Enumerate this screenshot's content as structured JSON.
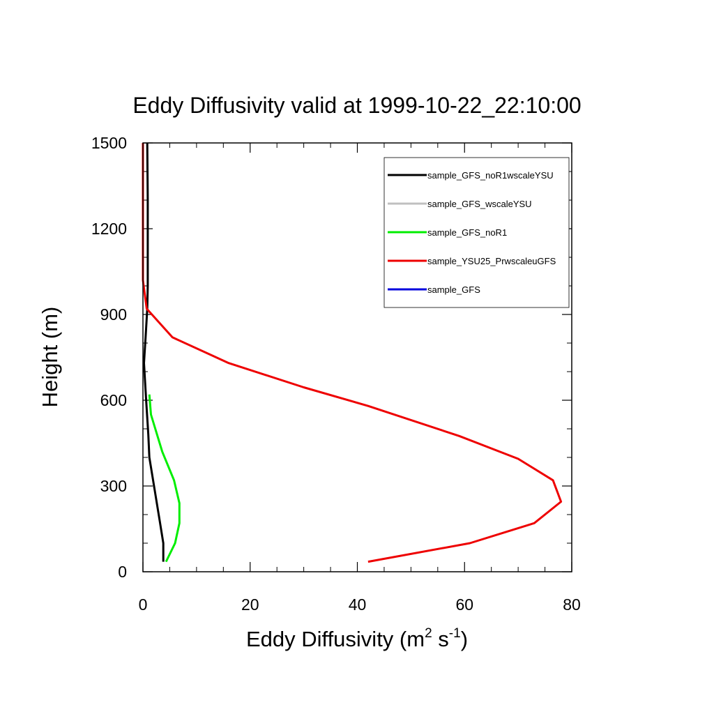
{
  "chart_data": {
    "type": "line",
    "title": "Eddy Diffusivity valid at 1999-10-22_22:10:00",
    "xlabel": {
      "prefix": "Eddy Diffusivity (m",
      "sup1": "2",
      "mid": " s",
      "sup2": "-1",
      "suffix": ")"
    },
    "ylabel": "Height (m)",
    "xlim": [
      0,
      80
    ],
    "ylim": [
      0,
      1500
    ],
    "x_ticks": [
      0,
      20,
      40,
      60,
      80
    ],
    "x_tick_labels": [
      "0",
      "20",
      "40",
      "60",
      "80"
    ],
    "y_ticks": [
      0,
      300,
      600,
      900,
      1200,
      1500
    ],
    "y_tick_labels": [
      "0",
      "300",
      "600",
      "900",
      "1200",
      "1500"
    ],
    "x_minor_step": 5,
    "y_minor_step": 100,
    "grid": false,
    "legend_position": "top-right",
    "series": [
      {
        "name": "sample_GFS_noR1wscaleYSU",
        "color": "#000000",
        "x": [
          3.8,
          3.8,
          3.2,
          1.2,
          1.0,
          0.6,
          0.2,
          0.5,
          0.8,
          0.9,
          0.9,
          0.9,
          0.9,
          0.8
        ],
        "y": [
          35,
          100,
          170,
          400,
          480,
          600,
          730,
          820,
          920,
          1000,
          1100,
          1200,
          1300,
          1500
        ]
      },
      {
        "name": "sample_GFS_wscaleYSU",
        "color": "#c0c0c0",
        "x": [],
        "y": []
      },
      {
        "name": "sample_GFS_noR1",
        "color": "#00ee00",
        "x": [
          4.3,
          6.0,
          6.8,
          6.8,
          5.8,
          3.6,
          1.5,
          1.2
        ],
        "y": [
          35,
          100,
          170,
          240,
          320,
          420,
          550,
          620
        ]
      },
      {
        "name": "sample_YSU25_PrwscaleuGFS",
        "color": "#ee0000",
        "x": [
          42,
          61,
          73,
          78,
          76.5,
          70,
          59,
          42,
          30,
          16,
          5.5,
          0.7,
          0,
          0,
          0,
          0
        ],
        "y": [
          35,
          100,
          170,
          245,
          320,
          395,
          475,
          580,
          645,
          730,
          820,
          920,
          1020,
          1100,
          1300,
          1500
        ]
      },
      {
        "name": "sample_GFS",
        "color": "#0000dd",
        "x": [],
        "y": []
      }
    ]
  }
}
